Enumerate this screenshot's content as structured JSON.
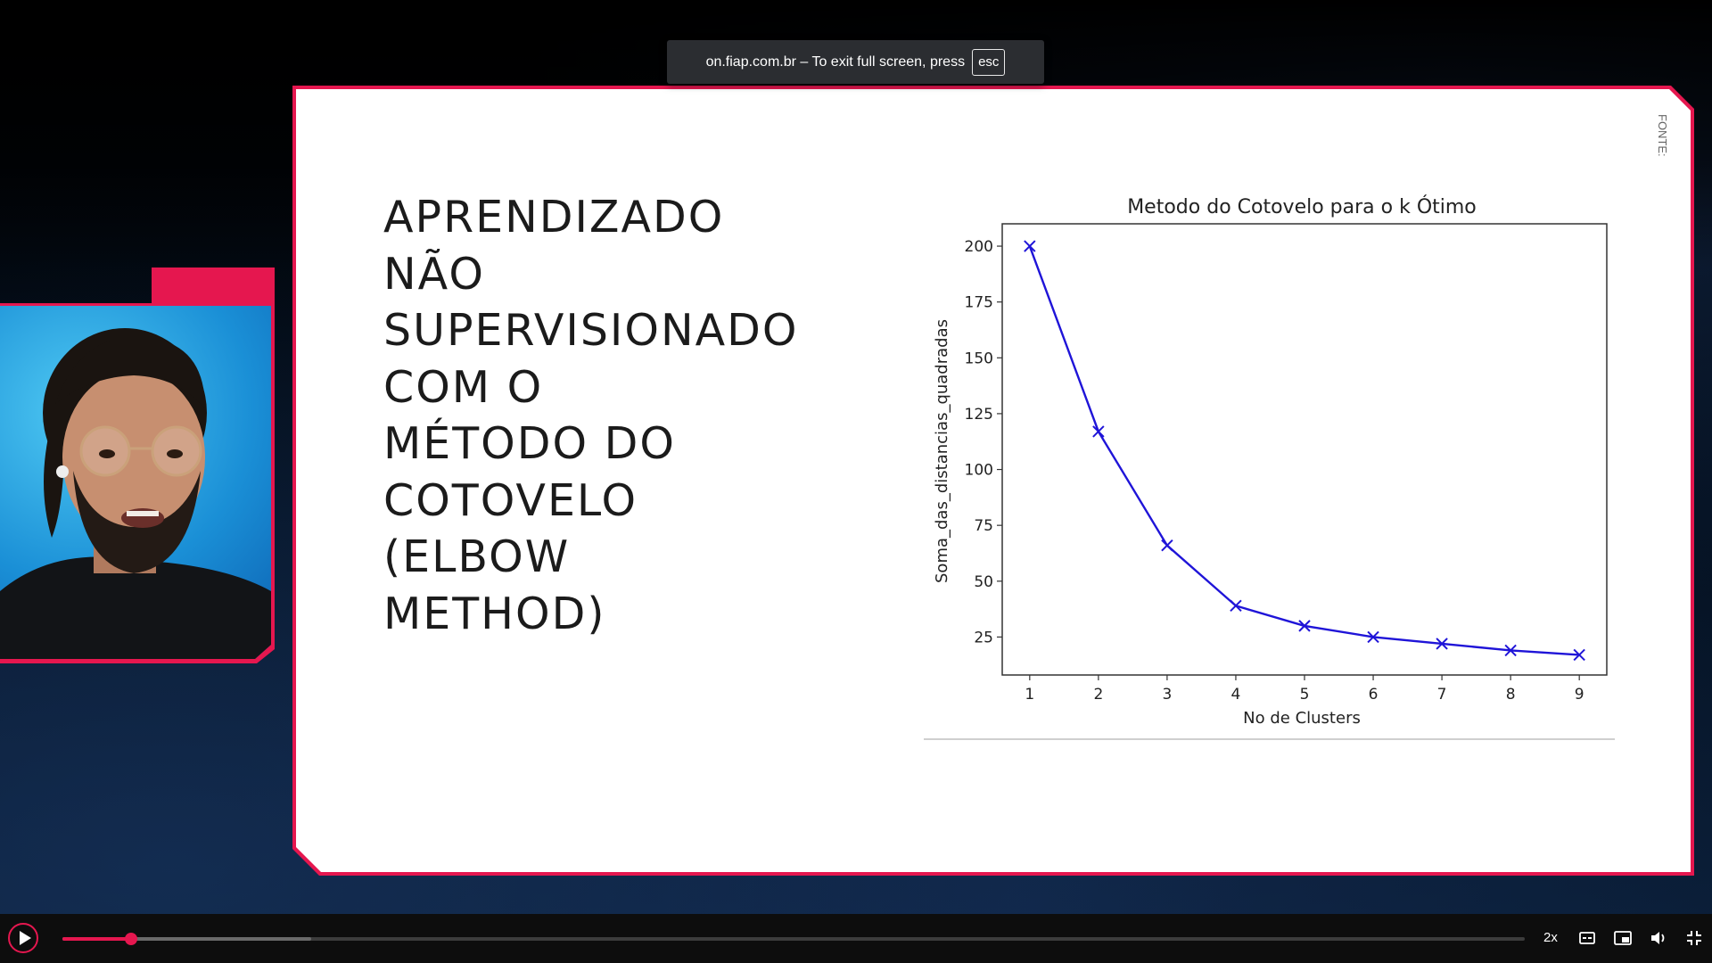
{
  "toast": {
    "text": "on.fiap.com.br – To exit full screen, press",
    "key": "esc"
  },
  "slide": {
    "title": "APRENDIZADO\nNÃO\nSUPERVISIONADO\nCOM O\nMÉTODO DO\nCOTOVELO\n(ELBOW\nMETHOD)",
    "source_label": "FONTE:"
  },
  "chart_data": {
    "type": "line",
    "title": "Metodo do Cotovelo para o k Ótimo",
    "xlabel": "No de Clusters",
    "ylabel": "Soma_das_distancias_quadradas",
    "x": [
      1,
      2,
      3,
      4,
      5,
      6,
      7,
      8,
      9
    ],
    "y": [
      200,
      117,
      66,
      39,
      30,
      25,
      22,
      19,
      17
    ],
    "xticks": [
      "1",
      "2",
      "3",
      "4",
      "5",
      "6",
      "7",
      "8",
      "9"
    ],
    "yticks": [
      "25",
      "50",
      "75",
      "100",
      "125",
      "150",
      "175",
      "200"
    ],
    "ylim": [
      8,
      210
    ],
    "xlim": [
      0.6,
      9.4
    ],
    "marker": "x",
    "color": "#1f14d8",
    "grid": false
  },
  "player": {
    "speed": "2x",
    "progress": 0.047,
    "buffered": 0.17,
    "accent": "#e5174f"
  }
}
